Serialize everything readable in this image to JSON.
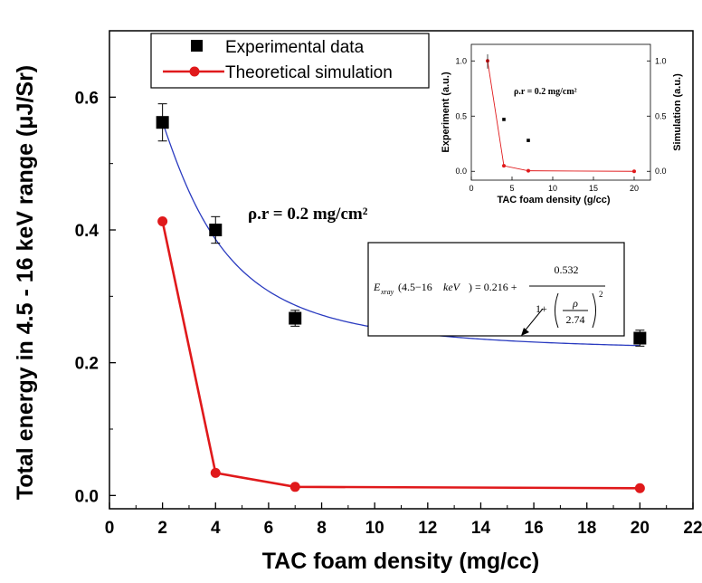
{
  "chart_data": {
    "main": {
      "type": "scatter",
      "xlabel": "TAC foam density (mg/cc)",
      "ylabel": "Total energy in 4.5 - 16  keV range (μJ/Sr)",
      "xlim": [
        0,
        22
      ],
      "ylim": [
        -0.02,
        0.7
      ],
      "xticks": [
        "0",
        "2",
        "4",
        "6",
        "8",
        "10",
        "12",
        "14",
        "16",
        "18",
        "20",
        "22"
      ],
      "yticks": [
        "0.0",
        "0.2",
        "0.4",
        "0.6"
      ],
      "annotation": "ρ.r = 0.2 mg/cm²",
      "series": [
        {
          "name": "Experimental data",
          "marker": "square",
          "color": "#000000",
          "x": [
            2,
            4,
            7,
            20
          ],
          "y": [
            0.562,
            0.4,
            0.267,
            0.237
          ],
          "err": [
            0.028,
            0.02,
            0.012,
            0.012
          ]
        },
        {
          "name": "Theoretical simulation",
          "marker": "circle",
          "color": "#e0191b",
          "x": [
            2,
            4,
            7,
            20
          ],
          "y": [
            0.413,
            0.034,
            0.013,
            0.011
          ]
        }
      ],
      "fit": {
        "color": "#2a3bc0",
        "offset": 0.216,
        "amplitude": 0.532,
        "scale": 2.74,
        "x_start": 2,
        "x_end": 20,
        "equation": {
          "lhs_symbol": "E",
          "lhs_subscript": "xray",
          "range_text": "(4.5−16",
          "unit_text": "keV",
          "rhs_text": ") = 0.216 +",
          "numerator": "0.532",
          "denom_one": "1+",
          "rho": "ρ",
          "rho_scale": "2.74",
          "power": "2"
        }
      }
    },
    "inset": {
      "type": "scatter",
      "xlabel": "TAC foam density (g/cc)",
      "ylabel_left": "Experiment (a.u.)",
      "ylabel_right": "Simulation (a.u.)",
      "xlim": [
        0,
        22
      ],
      "ylim": [
        -0.08,
        1.15
      ],
      "xticks": [
        "0",
        "5",
        "10",
        "15",
        "20"
      ],
      "yticks": [
        "0.0",
        "0.5",
        "1.0"
      ],
      "annotation": "ρ.r = 0.2 mg/cm²",
      "simulation": {
        "x": [
          2,
          4,
          7,
          20
        ],
        "y": [
          1.0,
          0.05,
          0.005,
          0.0
        ],
        "color": "#e0191b"
      },
      "experiment": {
        "x": [
          4,
          7
        ],
        "y": [
          0.47,
          0.28
        ],
        "color": "#000000"
      }
    }
  }
}
